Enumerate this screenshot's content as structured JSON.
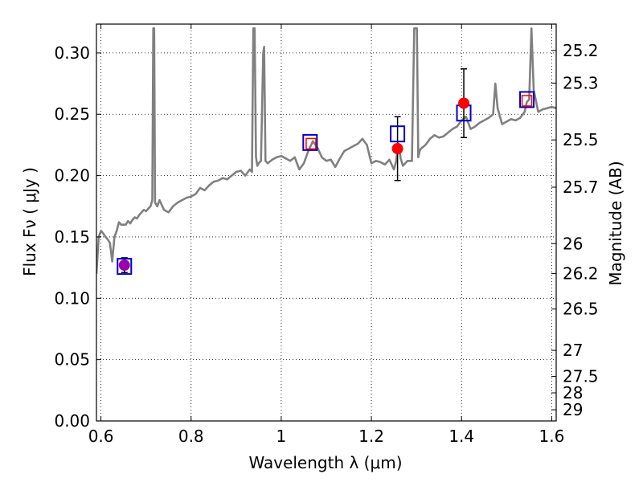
{
  "chart_data": {
    "type": "line",
    "title": "",
    "xlabel": "Wavelength  λ (μm)",
    "ylabel": "Flux  Fν  ( μJy )",
    "y2label": "Magnitude (AB)",
    "xlim": [
      0.59,
      1.61
    ],
    "ylim": [
      0.0,
      0.3235
    ],
    "grid": true,
    "grid_style": "dotted",
    "x_ticks": [
      {
        "value": 0.6,
        "label": "0.6"
      },
      {
        "value": 0.8,
        "label": "0.8"
      },
      {
        "value": 1.0,
        "label": "1"
      },
      {
        "value": 1.2,
        "label": "1.2"
      },
      {
        "value": 1.4,
        "label": "1.4"
      },
      {
        "value": 1.6,
        "label": "1.6"
      }
    ],
    "y_ticks": [
      {
        "value": 0.0,
        "label": "0.00"
      },
      {
        "value": 0.05,
        "label": "0.05"
      },
      {
        "value": 0.1,
        "label": "0.10"
      },
      {
        "value": 0.15,
        "label": "0.15"
      },
      {
        "value": 0.2,
        "label": "0.20"
      },
      {
        "value": 0.25,
        "label": "0.25"
      },
      {
        "value": 0.3,
        "label": "0.30"
      }
    ],
    "y2_ticks": [
      {
        "value": 25.2,
        "label": "25.2"
      },
      {
        "value": 25.3,
        "label": "25.3"
      },
      {
        "value": 25.5,
        "label": "25.5"
      },
      {
        "value": 25.7,
        "label": "25.7"
      },
      {
        "value": 26.0,
        "label": "26"
      },
      {
        "value": 26.2,
        "label": "26.2"
      },
      {
        "value": 26.5,
        "label": "26.5"
      },
      {
        "value": 27.0,
        "label": "27"
      },
      {
        "value": 27.5,
        "label": "27.5"
      },
      {
        "value": 28.0,
        "label": "28"
      },
      {
        "value": 29.0,
        "label": "29"
      }
    ],
    "colors": {
      "spectrum": "#808080",
      "observed": "#ff0000",
      "model_blue": "#0000cc",
      "model_red": "#ff0000",
      "overlap": "#9900aa",
      "errorbar": "#000000"
    },
    "series": [
      {
        "kind": "spectrum",
        "x": [
          0.59,
          0.595,
          0.6,
          0.605,
          0.61,
          0.615,
          0.62,
          0.625,
          0.63,
          0.635,
          0.64,
          0.645,
          0.65,
          0.655,
          0.66,
          0.665,
          0.67,
          0.675,
          0.68,
          0.685,
          0.69,
          0.695,
          0.7,
          0.705,
          0.71,
          0.714,
          0.716,
          0.718,
          0.72,
          0.725,
          0.73,
          0.74,
          0.75,
          0.76,
          0.77,
          0.78,
          0.79,
          0.8,
          0.81,
          0.82,
          0.83,
          0.84,
          0.85,
          0.86,
          0.87,
          0.88,
          0.89,
          0.9,
          0.91,
          0.92,
          0.93,
          0.935,
          0.938,
          0.941,
          0.944,
          0.947,
          0.95,
          0.955,
          0.96,
          0.962,
          0.965,
          0.97,
          0.98,
          0.99,
          1.0,
          1.01,
          1.02,
          1.03,
          1.04,
          1.05,
          1.06,
          1.07,
          1.08,
          1.09,
          1.1,
          1.11,
          1.12,
          1.13,
          1.14,
          1.15,
          1.16,
          1.17,
          1.18,
          1.19,
          1.2,
          1.21,
          1.22,
          1.23,
          1.24,
          1.25,
          1.255,
          1.26,
          1.265,
          1.27,
          1.28,
          1.29,
          1.295,
          1.298,
          1.301,
          1.304,
          1.307,
          1.31,
          1.32,
          1.33,
          1.34,
          1.35,
          1.36,
          1.37,
          1.38,
          1.39,
          1.4,
          1.41,
          1.42,
          1.43,
          1.44,
          1.45,
          1.46,
          1.47,
          1.475,
          1.48,
          1.49,
          1.5,
          1.51,
          1.52,
          1.53,
          1.54,
          1.545,
          1.55,
          1.555,
          1.56,
          1.57,
          1.58,
          1.59,
          1.6,
          1.61
        ],
        "y": [
          0.12,
          0.15,
          0.155,
          0.153,
          0.15,
          0.148,
          0.145,
          0.13,
          0.15,
          0.155,
          0.162,
          0.16,
          0.16,
          0.16,
          0.163,
          0.161,
          0.164,
          0.166,
          0.165,
          0.168,
          0.17,
          0.172,
          0.171,
          0.173,
          0.175,
          0.18,
          0.32,
          0.32,
          0.178,
          0.175,
          0.18,
          0.172,
          0.17,
          0.175,
          0.178,
          0.18,
          0.182,
          0.183,
          0.185,
          0.19,
          0.188,
          0.192,
          0.195,
          0.196,
          0.198,
          0.197,
          0.2,
          0.203,
          0.204,
          0.2,
          0.205,
          0.203,
          0.32,
          0.32,
          0.215,
          0.208,
          0.21,
          0.212,
          0.3,
          0.305,
          0.212,
          0.21,
          0.213,
          0.215,
          0.216,
          0.214,
          0.212,
          0.215,
          0.205,
          0.21,
          0.22,
          0.228,
          0.223,
          0.215,
          0.212,
          0.213,
          0.207,
          0.214,
          0.22,
          0.222,
          0.224,
          0.226,
          0.23,
          0.225,
          0.21,
          0.212,
          0.211,
          0.209,
          0.213,
          0.205,
          0.212,
          0.226,
          0.214,
          0.208,
          0.212,
          0.212,
          0.32,
          0.32,
          0.32,
          0.215,
          0.22,
          0.222,
          0.225,
          0.23,
          0.233,
          0.231,
          0.232,
          0.235,
          0.238,
          0.24,
          0.245,
          0.248,
          0.238,
          0.24,
          0.243,
          0.245,
          0.247,
          0.25,
          0.275,
          0.255,
          0.242,
          0.244,
          0.246,
          0.245,
          0.247,
          0.252,
          0.26,
          0.262,
          0.32,
          0.27,
          0.252,
          0.254,
          0.255,
          0.256,
          0.255
        ]
      },
      {
        "kind": "observed",
        "name": "",
        "points": [
          {
            "x": 0.652,
            "y": 0.127,
            "err": 0.006
          },
          {
            "x": 1.258,
            "y": 0.222,
            "err": 0.026
          },
          {
            "x": 1.405,
            "y": 0.259,
            "err": 0.028
          }
        ]
      },
      {
        "kind": "model_blue",
        "name": "",
        "points": [
          {
            "x": 0.652,
            "y": 0.126
          },
          {
            "x": 1.064,
            "y": 0.227
          },
          {
            "x": 1.258,
            "y": 0.234
          },
          {
            "x": 1.405,
            "y": 0.251
          },
          {
            "x": 1.545,
            "y": 0.262
          }
        ]
      },
      {
        "kind": "model_red",
        "name": "",
        "points": [
          {
            "x": 1.066,
            "y": 0.226
          },
          {
            "x": 1.545,
            "y": 0.261
          }
        ]
      }
    ]
  }
}
